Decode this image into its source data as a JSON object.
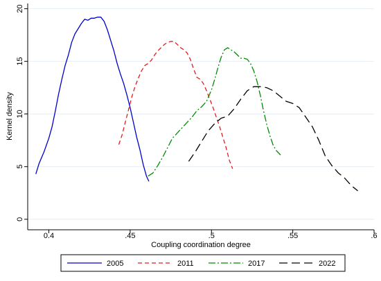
{
  "chart_data": {
    "type": "line",
    "title": "",
    "xlabel": "Coupling coordination degree",
    "ylabel": "Kernel density",
    "xlim": [
      0.387,
      0.6
    ],
    "ylim": [
      -1,
      20.5
    ],
    "xticks": [
      0.4,
      0.45,
      0.5,
      0.55,
      0.6
    ],
    "xtick_labels": [
      "0.4",
      ".45",
      ".5",
      ".55",
      ".6"
    ],
    "yticks": [
      0,
      5,
      10,
      15,
      20
    ],
    "ytick_labels": [
      "0",
      "5",
      "10",
      "15",
      "20"
    ],
    "grid": "horizontal",
    "legend_position": "bottom",
    "series": [
      {
        "name": "2005",
        "color": "#0000cc",
        "dash": "solid",
        "points": [
          [
            0.392,
            4.3
          ],
          [
            0.394,
            5.3
          ],
          [
            0.397,
            6.4
          ],
          [
            0.4,
            7.7
          ],
          [
            0.402,
            8.8
          ],
          [
            0.404,
            10.3
          ],
          [
            0.406,
            11.9
          ],
          [
            0.408,
            13.3
          ],
          [
            0.41,
            14.6
          ],
          [
            0.412,
            15.6
          ],
          [
            0.414,
            16.8
          ],
          [
            0.416,
            17.6
          ],
          [
            0.418,
            18.1
          ],
          [
            0.42,
            18.6
          ],
          [
            0.422,
            19.0
          ],
          [
            0.424,
            18.9
          ],
          [
            0.426,
            19.1
          ],
          [
            0.428,
            19.1
          ],
          [
            0.43,
            19.2
          ],
          [
            0.432,
            19.2
          ],
          [
            0.434,
            18.8
          ],
          [
            0.436,
            18.0
          ],
          [
            0.438,
            17.0
          ],
          [
            0.44,
            16.0
          ],
          [
            0.442,
            14.8
          ],
          [
            0.444,
            13.8
          ],
          [
            0.446,
            12.9
          ],
          [
            0.448,
            11.8
          ],
          [
            0.45,
            10.6
          ],
          [
            0.452,
            9.2
          ],
          [
            0.454,
            7.8
          ],
          [
            0.456,
            6.6
          ],
          [
            0.458,
            5.2
          ],
          [
            0.46,
            4.1
          ],
          [
            0.4615,
            3.6
          ]
        ]
      },
      {
        "name": "2011",
        "color": "#e31a1c",
        "dash": "short-dash",
        "points": [
          [
            0.443,
            7.1
          ],
          [
            0.445,
            8.0
          ],
          [
            0.447,
            9.2
          ],
          [
            0.449,
            10.4
          ],
          [
            0.451,
            11.6
          ],
          [
            0.453,
            12.6
          ],
          [
            0.455,
            13.4
          ],
          [
            0.457,
            14.1
          ],
          [
            0.459,
            14.6
          ],
          [
            0.461,
            14.8
          ],
          [
            0.463,
            15.1
          ],
          [
            0.465,
            15.6
          ],
          [
            0.467,
            16.0
          ],
          [
            0.469,
            16.3
          ],
          [
            0.471,
            16.6
          ],
          [
            0.473,
            16.8
          ],
          [
            0.475,
            16.9
          ],
          [
            0.477,
            16.9
          ],
          [
            0.479,
            16.6
          ],
          [
            0.481,
            16.3
          ],
          [
            0.483,
            16.1
          ],
          [
            0.485,
            15.8
          ],
          [
            0.487,
            15.2
          ],
          [
            0.489,
            14.3
          ],
          [
            0.491,
            13.5
          ],
          [
            0.493,
            13.3
          ],
          [
            0.495,
            12.9
          ],
          [
            0.497,
            12.2
          ],
          [
            0.499,
            11.4
          ],
          [
            0.501,
            10.6
          ],
          [
            0.503,
            9.7
          ],
          [
            0.505,
            8.8
          ],
          [
            0.507,
            7.8
          ],
          [
            0.509,
            6.8
          ],
          [
            0.511,
            5.6
          ],
          [
            0.513,
            4.8
          ]
        ]
      },
      {
        "name": "2017",
        "color": "#008c00",
        "dash": "dash-dot",
        "points": [
          [
            0.461,
            4.1
          ],
          [
            0.464,
            4.4
          ],
          [
            0.467,
            5.1
          ],
          [
            0.47,
            5.9
          ],
          [
            0.473,
            6.8
          ],
          [
            0.476,
            7.7
          ],
          [
            0.479,
            8.2
          ],
          [
            0.482,
            8.7
          ],
          [
            0.485,
            9.2
          ],
          [
            0.488,
            9.7
          ],
          [
            0.491,
            10.3
          ],
          [
            0.494,
            10.7
          ],
          [
            0.497,
            11.2
          ],
          [
            0.5,
            12.3
          ],
          [
            0.502,
            13.3
          ],
          [
            0.504,
            14.4
          ],
          [
            0.506,
            15.4
          ],
          [
            0.508,
            16.1
          ],
          [
            0.51,
            16.3
          ],
          [
            0.512,
            16.1
          ],
          [
            0.514,
            15.9
          ],
          [
            0.516,
            15.6
          ],
          [
            0.518,
            15.3
          ],
          [
            0.52,
            15.3
          ],
          [
            0.522,
            15.2
          ],
          [
            0.524,
            14.8
          ],
          [
            0.526,
            14.1
          ],
          [
            0.528,
            13.1
          ],
          [
            0.53,
            11.8
          ],
          [
            0.532,
            10.3
          ],
          [
            0.534,
            9.0
          ],
          [
            0.536,
            7.9
          ],
          [
            0.538,
            7.0
          ],
          [
            0.54,
            6.5
          ],
          [
            0.5425,
            6.1
          ]
        ]
      },
      {
        "name": "2022",
        "color": "#000000",
        "dash": "long-dash",
        "points": [
          [
            0.486,
            5.5
          ],
          [
            0.49,
            6.4
          ],
          [
            0.494,
            7.4
          ],
          [
            0.498,
            8.4
          ],
          [
            0.502,
            9.1
          ],
          [
            0.506,
            9.6
          ],
          [
            0.51,
            9.8
          ],
          [
            0.514,
            10.5
          ],
          [
            0.518,
            11.4
          ],
          [
            0.522,
            12.2
          ],
          [
            0.526,
            12.6
          ],
          [
            0.53,
            12.6
          ],
          [
            0.534,
            12.5
          ],
          [
            0.538,
            12.2
          ],
          [
            0.542,
            11.7
          ],
          [
            0.546,
            11.2
          ],
          [
            0.55,
            11.0
          ],
          [
            0.554,
            10.6
          ],
          [
            0.558,
            9.7
          ],
          [
            0.562,
            8.8
          ],
          [
            0.566,
            7.5
          ],
          [
            0.57,
            6.0
          ],
          [
            0.574,
            5.1
          ],
          [
            0.578,
            4.4
          ],
          [
            0.582,
            3.9
          ],
          [
            0.586,
            3.2
          ],
          [
            0.59,
            2.7
          ]
        ]
      }
    ]
  }
}
